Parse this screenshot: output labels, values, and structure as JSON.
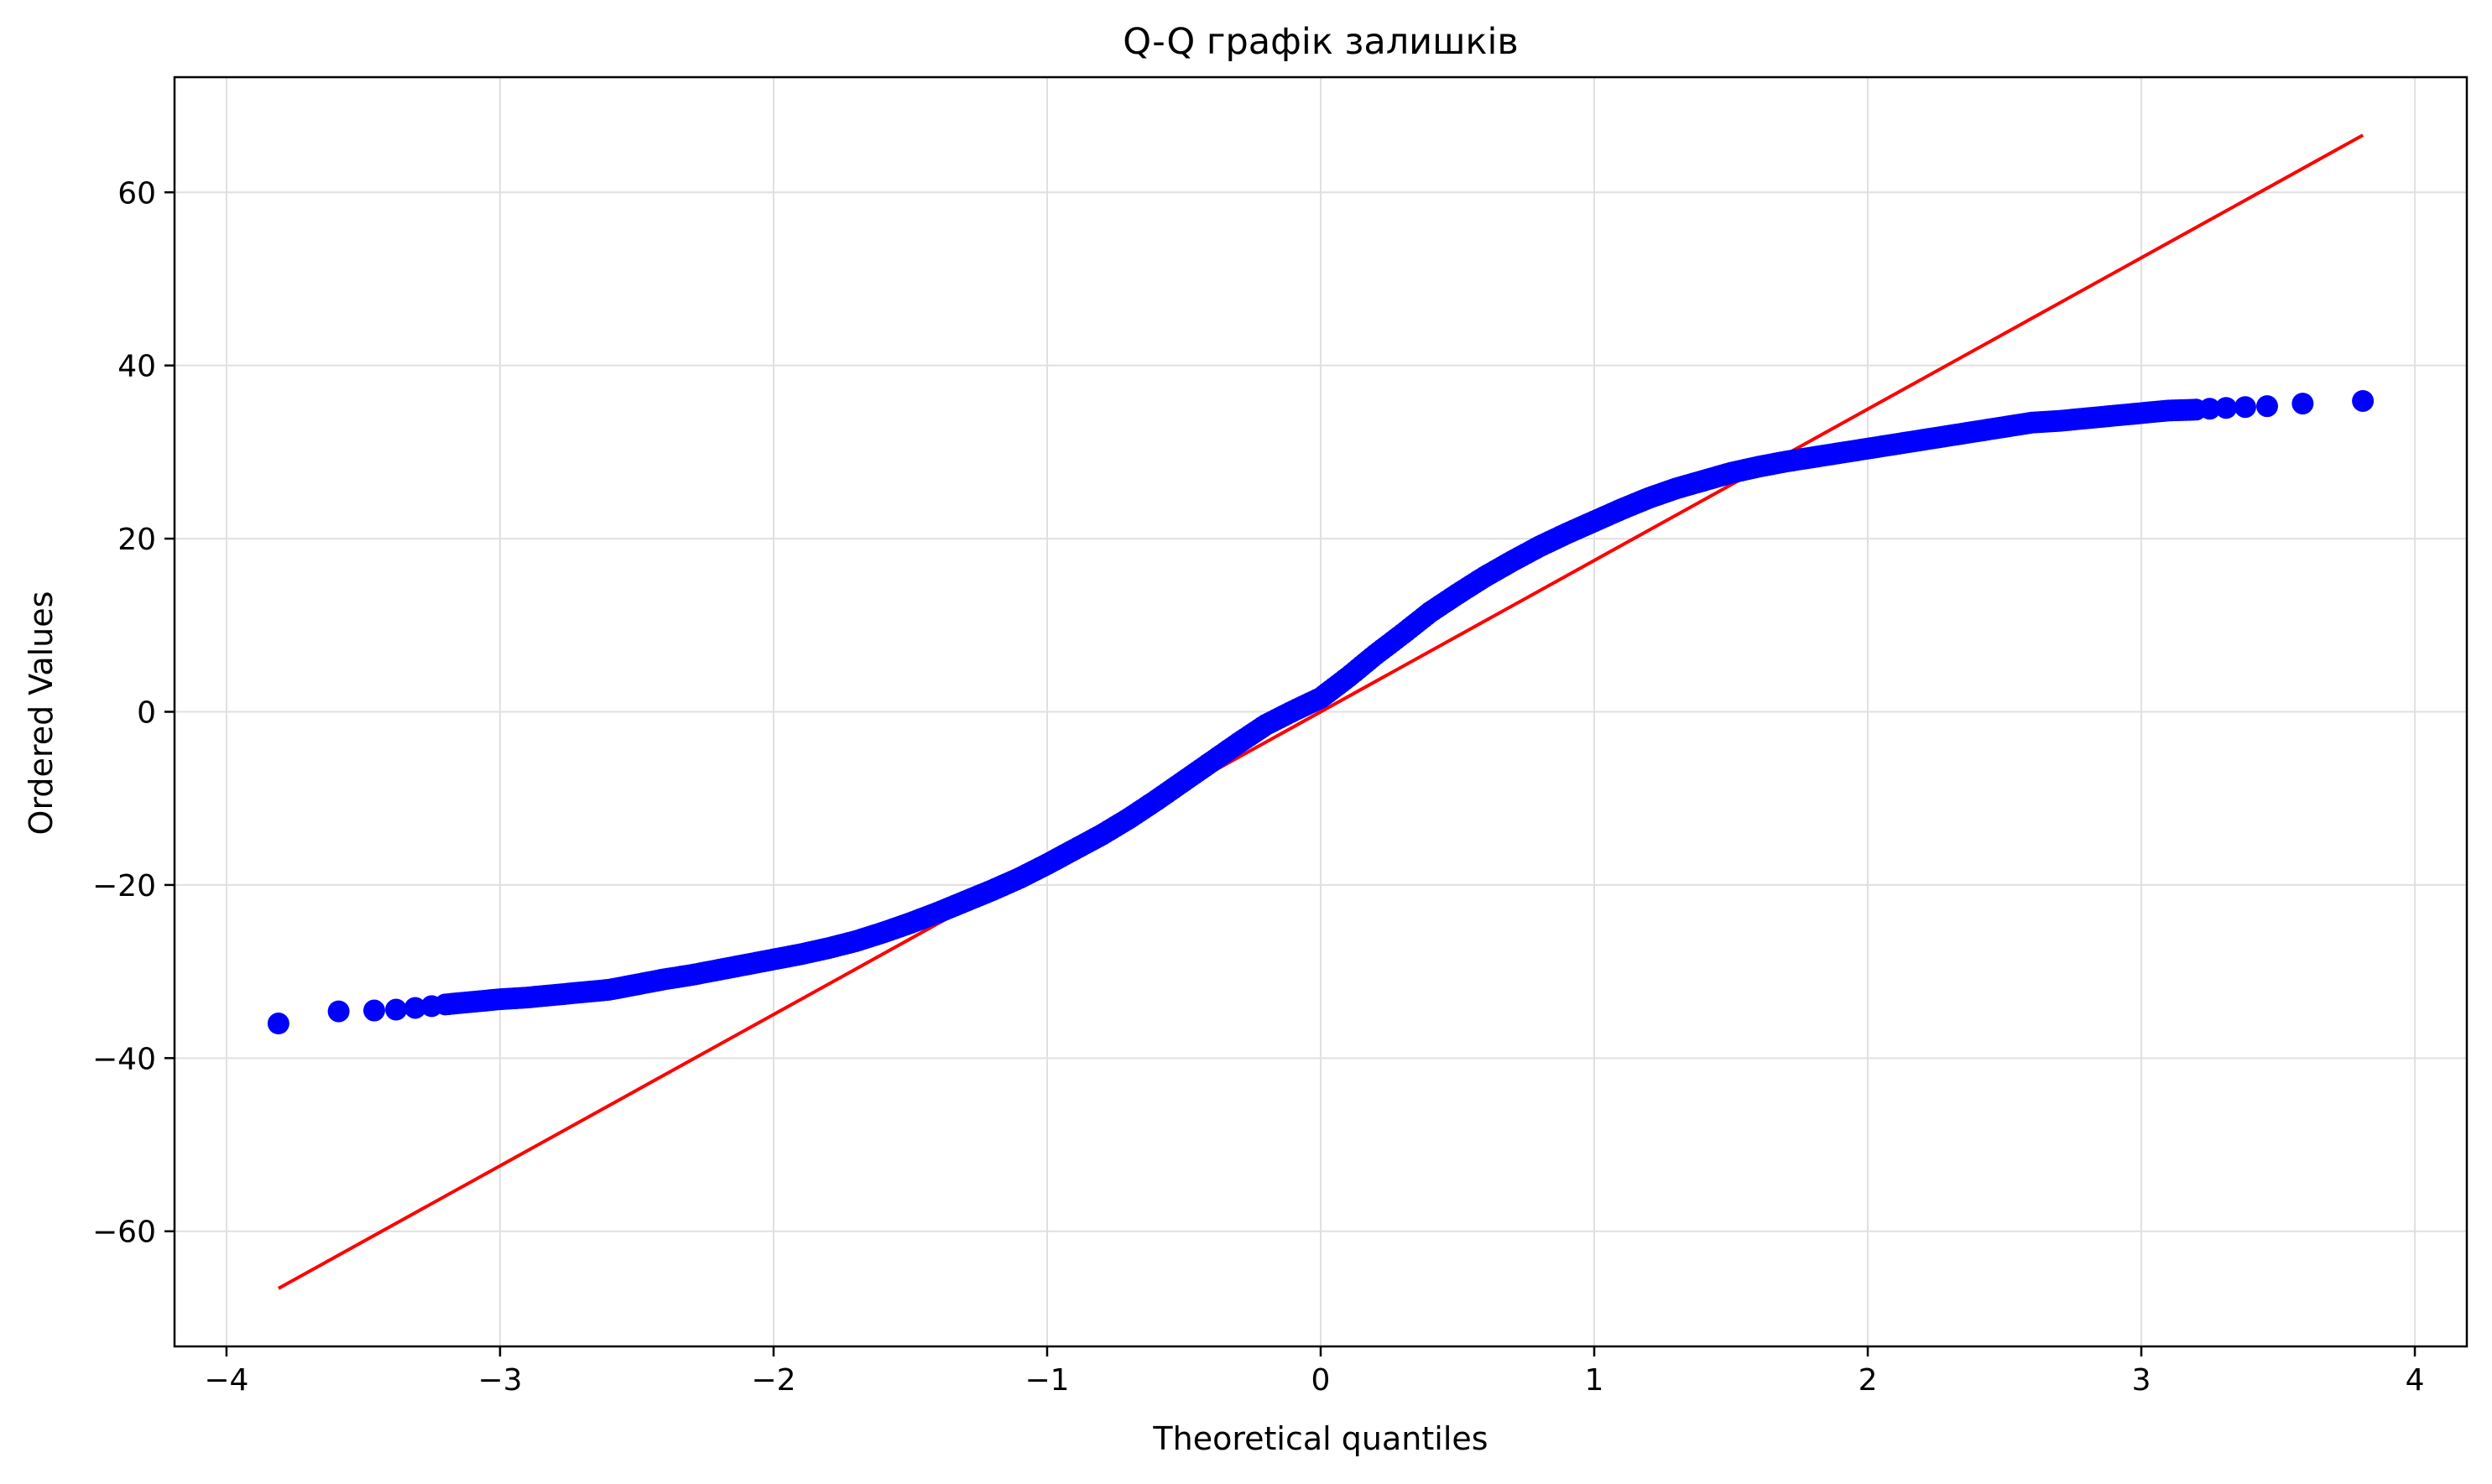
{
  "chart_data": {
    "type": "scatter",
    "title": "Q-Q графік залишків",
    "xlabel": "Theoretical quantiles",
    "ylabel": "Ordered Values",
    "xlim": [
      -4.19,
      4.19
    ],
    "ylim": [
      -73.3,
      73.3
    ],
    "xticks": [
      -4,
      -3,
      -2,
      -1,
      0,
      1,
      2,
      3,
      4
    ],
    "xtick_labels": [
      "−4",
      "−3",
      "−2",
      "−1",
      "0",
      "1",
      "2",
      "3",
      "4"
    ],
    "yticks": [
      -60,
      -40,
      -20,
      0,
      20,
      40,
      60
    ],
    "ytick_labels": [
      "−60",
      "−40",
      "−20",
      "0",
      "20",
      "40",
      "60"
    ],
    "grid": true,
    "legend": "none",
    "colors": {
      "points": "#0000ff",
      "fit_line": "#ff0000",
      "grid": "#e0e0e0",
      "axes": "#000000"
    },
    "series": [
      {
        "kind": "points",
        "x": [
          -3.81,
          -3.59,
          -3.46,
          -3.38,
          -3.31,
          -3.25,
          -3.2,
          -3.1,
          -3.0,
          -2.9,
          -2.8,
          -2.7,
          -2.6,
          -2.5,
          -2.4,
          -2.3,
          -2.2,
          -2.1,
          -2.0,
          -1.9,
          -1.8,
          -1.7,
          -1.6,
          -1.5,
          -1.4,
          -1.3,
          -1.2,
          -1.1,
          -1.0,
          -0.9,
          -0.8,
          -0.7,
          -0.6,
          -0.5,
          -0.4,
          -0.3,
          -0.2,
          -0.1,
          0.0,
          0.1,
          0.2,
          0.3,
          0.4,
          0.5,
          0.6,
          0.7,
          0.8,
          0.9,
          1.0,
          1.1,
          1.2,
          1.3,
          1.4,
          1.5,
          1.6,
          1.7,
          1.8,
          1.9,
          2.0,
          2.1,
          2.2,
          2.3,
          2.4,
          2.5,
          2.6,
          2.7,
          2.8,
          2.9,
          3.0,
          3.1,
          3.2,
          3.25,
          3.31,
          3.38,
          3.46,
          3.59,
          3.81
        ],
        "y": [
          -36.0,
          -34.6,
          -34.5,
          -34.4,
          -34.2,
          -34.0,
          -33.8,
          -33.5,
          -33.2,
          -33.0,
          -32.7,
          -32.4,
          -32.1,
          -31.5,
          -30.9,
          -30.4,
          -29.8,
          -29.2,
          -28.6,
          -28.0,
          -27.3,
          -26.5,
          -25.5,
          -24.4,
          -23.2,
          -21.9,
          -20.6,
          -19.2,
          -17.6,
          -15.9,
          -14.2,
          -12.3,
          -10.2,
          -8.0,
          -5.8,
          -3.6,
          -1.5,
          0.1,
          1.6,
          4.0,
          6.6,
          9.0,
          11.5,
          13.6,
          15.6,
          17.4,
          19.1,
          20.6,
          22.0,
          23.4,
          24.7,
          25.8,
          26.7,
          27.6,
          28.3,
          28.9,
          29.4,
          29.9,
          30.4,
          30.9,
          31.4,
          31.9,
          32.4,
          32.9,
          33.4,
          33.6,
          33.9,
          34.2,
          34.5,
          34.8,
          34.9,
          35.0,
          35.1,
          35.2,
          35.3,
          35.6,
          35.9
        ]
      },
      {
        "kind": "line",
        "x": [
          -3.81,
          3.81
        ],
        "y": [
          -66.6,
          66.6
        ]
      }
    ]
  }
}
